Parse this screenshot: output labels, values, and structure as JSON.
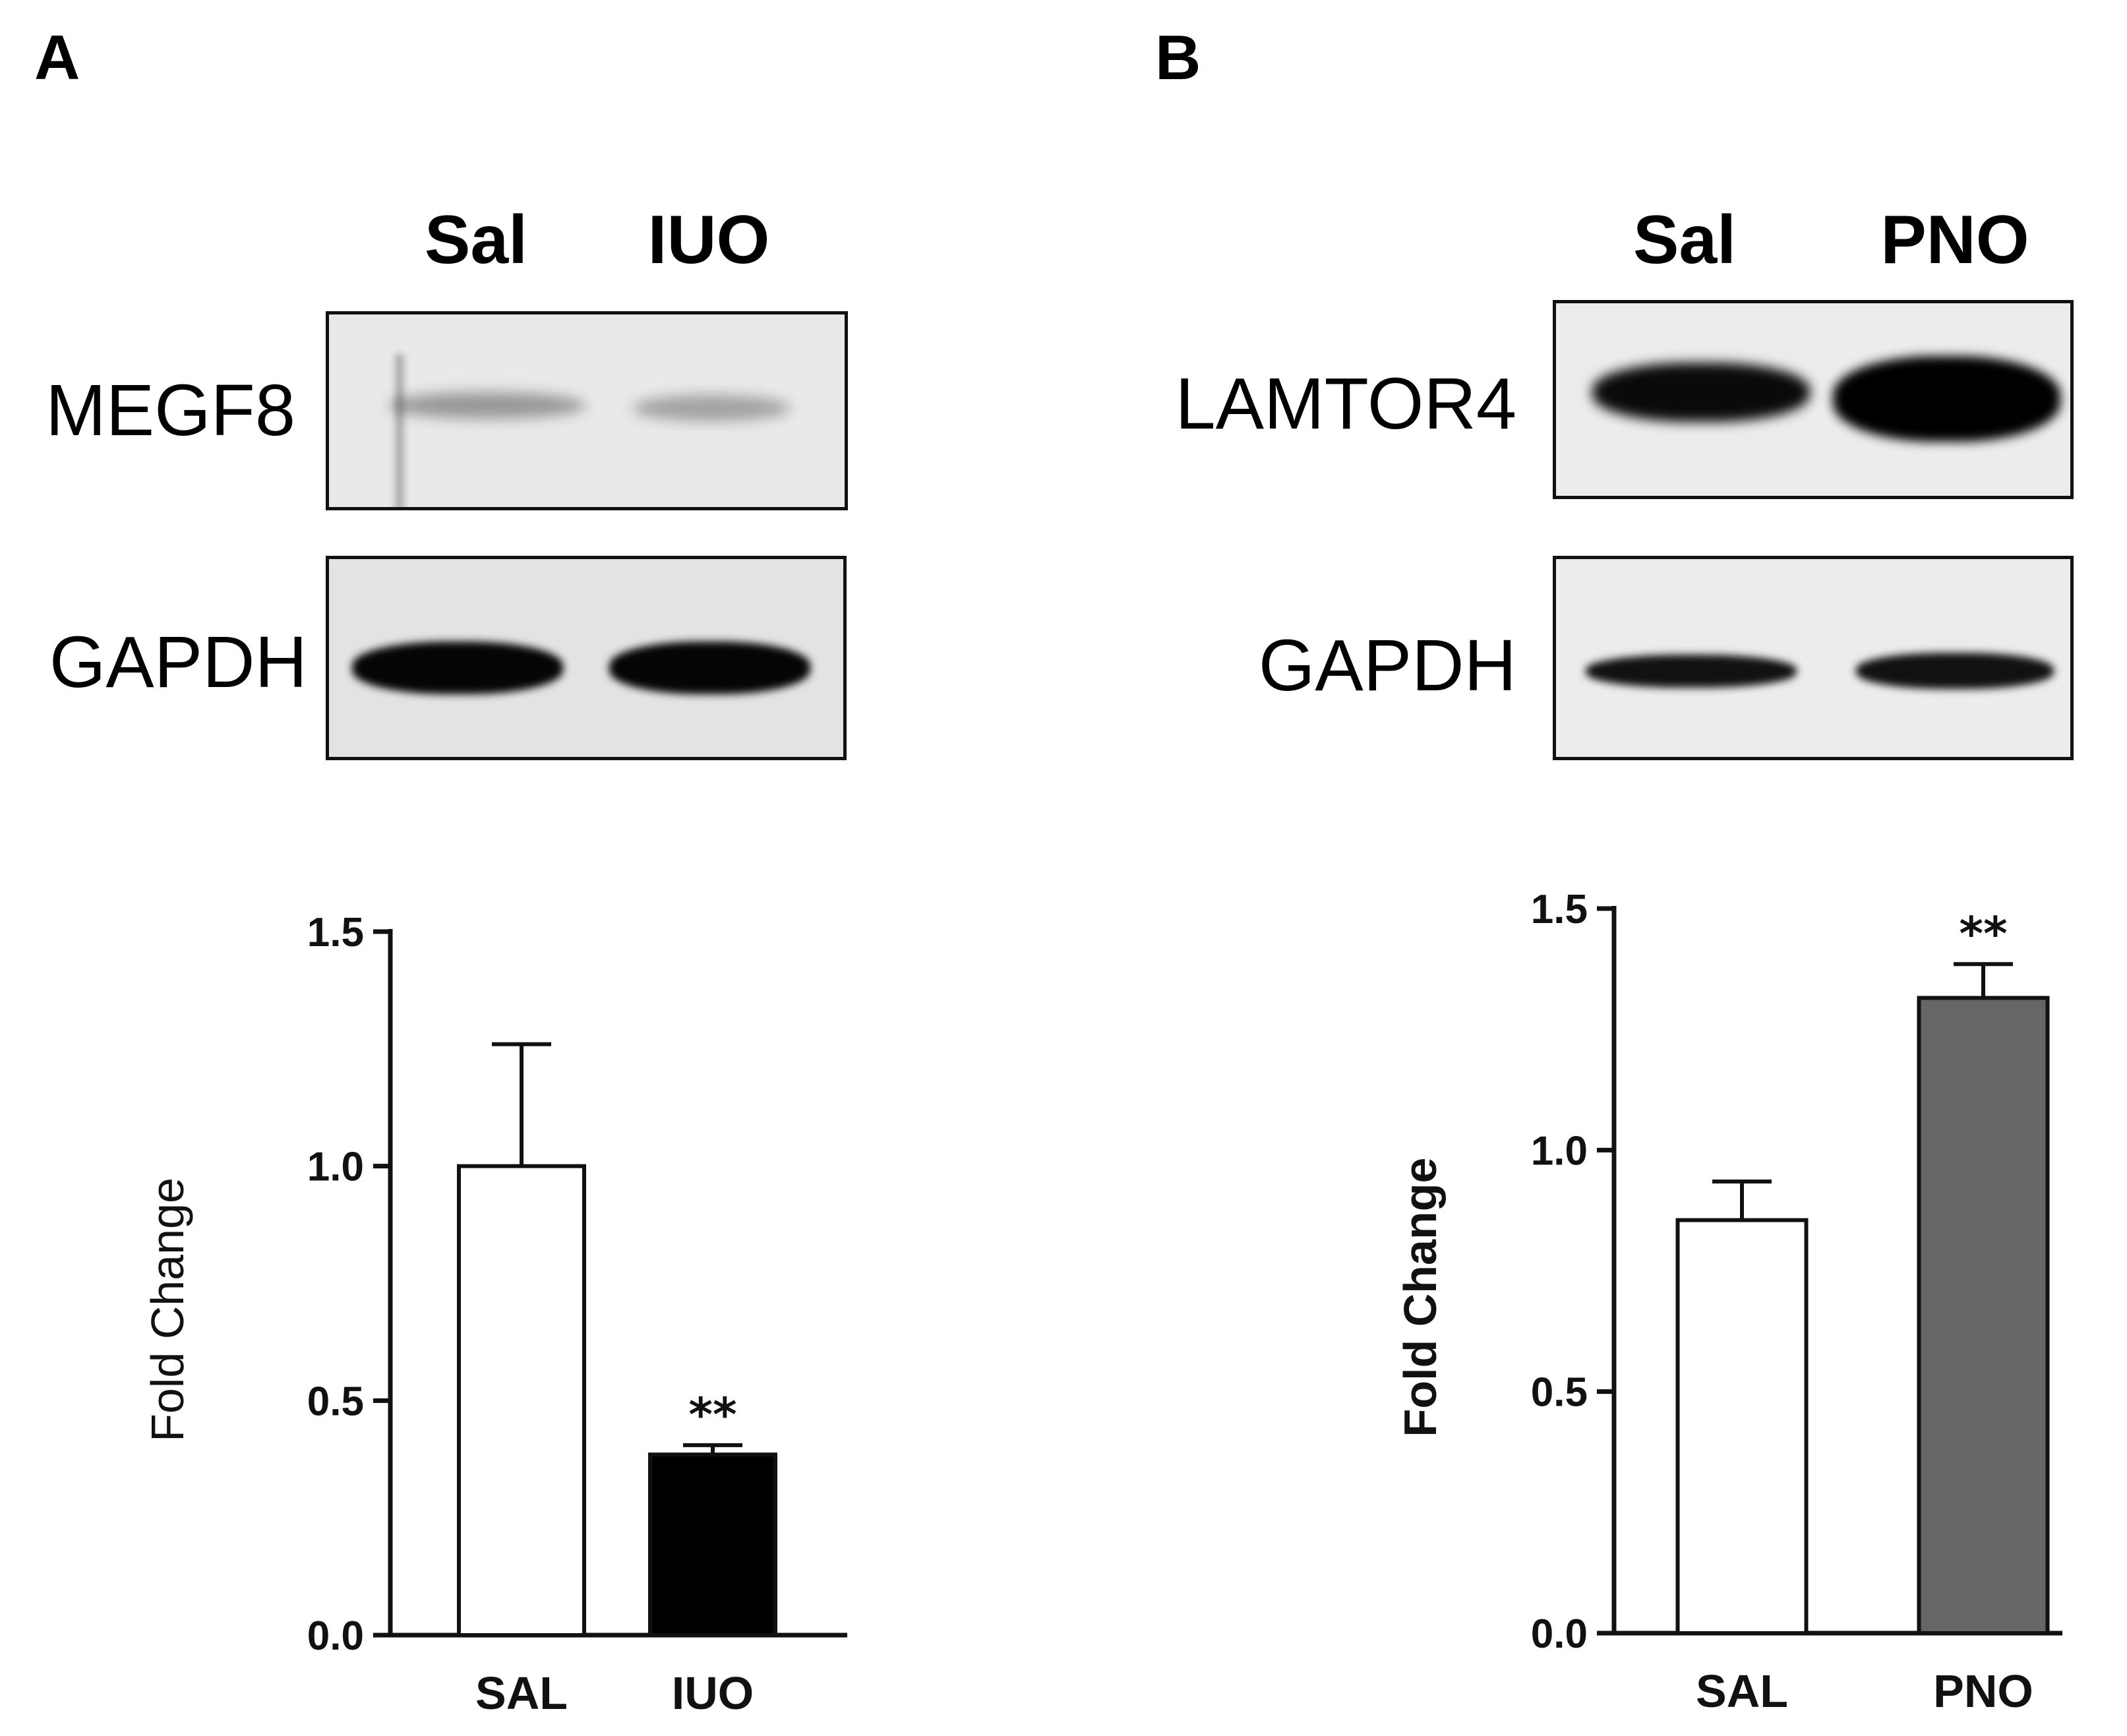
{
  "panels": {
    "a": {
      "letter": "A",
      "lanes": [
        "Sal",
        "IUO"
      ],
      "blots": [
        {
          "label": "MEGF8",
          "band_intensity": [
            0.35,
            0.3
          ]
        },
        {
          "label": "GAPDH",
          "band_intensity": [
            0.95,
            0.95
          ]
        }
      ]
    },
    "b": {
      "letter": "B",
      "lanes": [
        "Sal",
        "PNO"
      ],
      "blots": [
        {
          "label": "LAMTOR4",
          "band_intensity": [
            0.9,
            1.0
          ]
        },
        {
          "label": "GAPDH",
          "band_intensity": [
            0.9,
            0.9
          ]
        }
      ]
    }
  },
  "colors": {
    "bar_a_sal": "#ffffff",
    "bar_a_iuo": "#000000",
    "bar_b_sal": "#ffffff",
    "bar_b_pno": "#666666"
  },
  "chart_data": [
    {
      "type": "bar",
      "panel": "A",
      "categories": [
        "SAL",
        "IUO"
      ],
      "values": [
        1.0,
        0.385
      ],
      "error_upper": [
        0.26,
        0.02
      ],
      "significance": [
        "",
        "**"
      ],
      "ylabel": "Fold Change",
      "ylim": [
        0,
        1.5
      ],
      "yticks": [
        "0.0",
        "0.5",
        "1.0",
        "1.5"
      ],
      "grid": false
    },
    {
      "type": "bar",
      "panel": "B",
      "categories": [
        "SAL",
        "PNO"
      ],
      "values": [
        0.855,
        1.315
      ],
      "error_upper": [
        0.08,
        0.07
      ],
      "significance": [
        "",
        "**"
      ],
      "ylabel": "Fold Change",
      "ylim": [
        0,
        1.5
      ],
      "yticks": [
        "0.0",
        "0.5",
        "1.0",
        "1.5"
      ],
      "grid": false
    }
  ]
}
